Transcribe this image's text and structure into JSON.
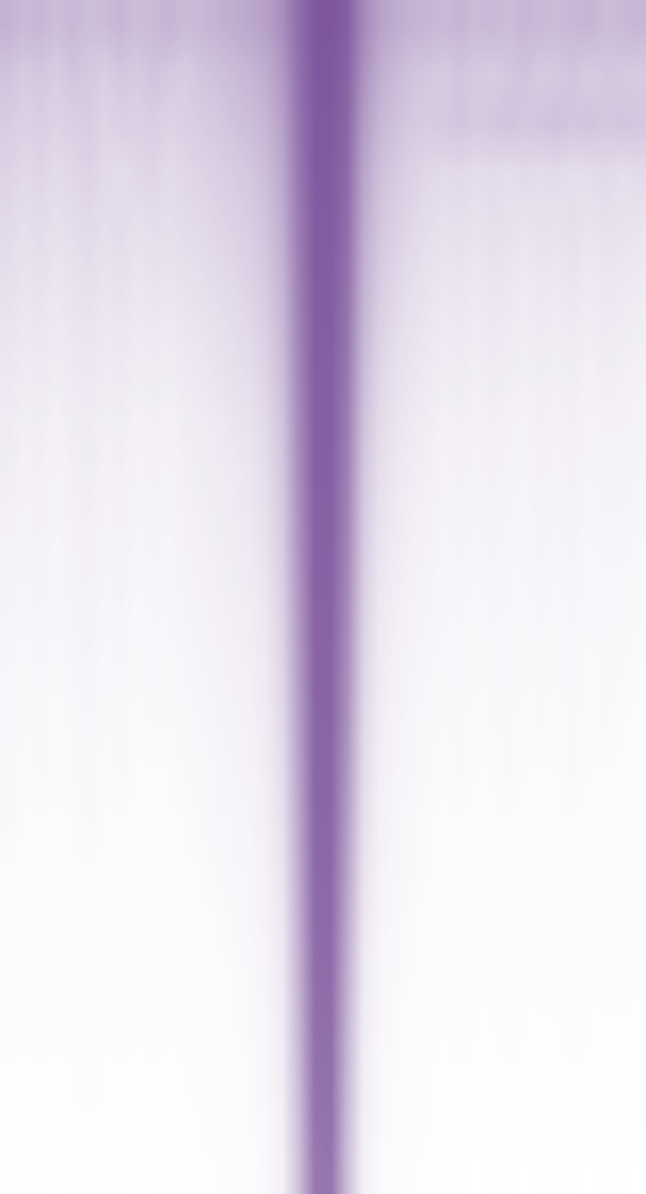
{
  "chart_data": {
    "type": "heatmap",
    "color": "#744a96",
    "value_range": [
      0,
      1
    ],
    "tick_labels": false,
    "cells": [
      [
        0.42,
        0.38,
        0.4,
        0.36,
        0.39,
        0.35,
        0.37,
        0.4,
        0.36,
        0.38,
        0.41,
        0.37,
        0.39,
        0.42,
        0.45,
        0.48,
        0.52,
        0.62,
        0.8,
        0.92,
        0.93,
        0.88,
        0.66,
        0.52,
        0.46,
        0.42,
        0.4,
        0.38,
        0.41,
        0.37,
        0.39,
        0.36,
        0.4,
        0.38,
        0.37,
        0.39,
        0.41,
        0.36,
        0.38,
        0.4
      ],
      [
        0.33,
        0.29,
        0.31,
        0.28,
        0.32,
        0.3,
        0.27,
        0.31,
        0.29,
        0.33,
        0.3,
        0.28,
        0.32,
        0.34,
        0.37,
        0.4,
        0.45,
        0.56,
        0.78,
        0.91,
        0.92,
        0.86,
        0.6,
        0.45,
        0.38,
        0.33,
        0.31,
        0.29,
        0.32,
        0.3,
        0.28,
        0.31,
        0.33,
        0.29,
        0.3,
        0.32,
        0.28,
        0.31,
        0.3,
        0.29
      ],
      [
        0.28,
        0.25,
        0.27,
        0.24,
        0.26,
        0.28,
        0.23,
        0.26,
        0.25,
        0.27,
        0.24,
        0.26,
        0.28,
        0.3,
        0.33,
        0.36,
        0.4,
        0.52,
        0.76,
        0.9,
        0.91,
        0.84,
        0.55,
        0.4,
        0.34,
        0.3,
        0.28,
        0.3,
        0.32,
        0.29,
        0.31,
        0.33,
        0.3,
        0.32,
        0.34,
        0.31,
        0.33,
        0.3,
        0.32,
        0.31
      ],
      [
        0.24,
        0.21,
        0.23,
        0.2,
        0.22,
        0.24,
        0.21,
        0.19,
        0.22,
        0.23,
        0.2,
        0.22,
        0.24,
        0.26,
        0.28,
        0.31,
        0.36,
        0.48,
        0.74,
        0.9,
        0.9,
        0.82,
        0.5,
        0.35,
        0.29,
        0.25,
        0.22,
        0.2,
        0.21,
        0.19,
        0.2,
        0.18,
        0.21,
        0.19,
        0.2,
        0.18,
        0.19,
        0.21,
        0.18,
        0.2
      ],
      [
        0.21,
        0.18,
        0.2,
        0.17,
        0.19,
        0.21,
        0.18,
        0.2,
        0.17,
        0.19,
        0.18,
        0.2,
        0.21,
        0.23,
        0.25,
        0.28,
        0.33,
        0.45,
        0.72,
        0.89,
        0.9,
        0.8,
        0.47,
        0.32,
        0.26,
        0.22,
        0.19,
        0.17,
        0.18,
        0.16,
        0.18,
        0.17,
        0.15,
        0.17,
        0.16,
        0.18,
        0.15,
        0.17,
        0.16,
        0.15
      ],
      [
        0.18,
        0.15,
        0.17,
        0.14,
        0.16,
        0.18,
        0.15,
        0.17,
        0.14,
        0.16,
        0.15,
        0.17,
        0.18,
        0.2,
        0.22,
        0.25,
        0.3,
        0.42,
        0.7,
        0.89,
        0.89,
        0.78,
        0.44,
        0.29,
        0.23,
        0.19,
        0.16,
        0.14,
        0.15,
        0.13,
        0.15,
        0.14,
        0.12,
        0.14,
        0.13,
        0.15,
        0.12,
        0.14,
        0.13,
        0.12
      ],
      [
        0.15,
        0.13,
        0.14,
        0.12,
        0.14,
        0.15,
        0.13,
        0.14,
        0.12,
        0.13,
        0.12,
        0.14,
        0.15,
        0.17,
        0.19,
        0.22,
        0.27,
        0.39,
        0.68,
        0.88,
        0.89,
        0.76,
        0.41,
        0.26,
        0.2,
        0.16,
        0.14,
        0.12,
        0.13,
        0.11,
        0.13,
        0.12,
        0.1,
        0.12,
        0.11,
        0.12,
        0.1,
        0.12,
        0.11,
        0.1
      ],
      [
        0.13,
        0.11,
        0.12,
        0.1,
        0.12,
        0.13,
        0.11,
        0.12,
        0.1,
        0.11,
        0.1,
        0.12,
        0.13,
        0.15,
        0.17,
        0.19,
        0.24,
        0.36,
        0.66,
        0.88,
        0.88,
        0.74,
        0.38,
        0.23,
        0.17,
        0.14,
        0.12,
        0.1,
        0.11,
        0.09,
        0.11,
        0.1,
        0.09,
        0.1,
        0.09,
        0.1,
        0.08,
        0.1,
        0.09,
        0.08
      ],
      [
        0.11,
        0.09,
        0.1,
        0.08,
        0.1,
        0.11,
        0.09,
        0.1,
        0.08,
        0.09,
        0.08,
        0.1,
        0.11,
        0.12,
        0.14,
        0.16,
        0.21,
        0.33,
        0.64,
        0.87,
        0.88,
        0.72,
        0.35,
        0.2,
        0.15,
        0.12,
        0.1,
        0.08,
        0.09,
        0.08,
        0.09,
        0.08,
        0.07,
        0.09,
        0.08,
        0.09,
        0.07,
        0.08,
        0.08,
        0.07
      ],
      [
        0.1,
        0.08,
        0.09,
        0.07,
        0.09,
        0.1,
        0.08,
        0.09,
        0.07,
        0.08,
        0.07,
        0.09,
        0.1,
        0.11,
        0.12,
        0.14,
        0.19,
        0.31,
        0.62,
        0.87,
        0.87,
        0.7,
        0.32,
        0.18,
        0.13,
        0.1,
        0.09,
        0.07,
        0.08,
        0.07,
        0.08,
        0.07,
        0.06,
        0.08,
        0.07,
        0.08,
        0.06,
        0.07,
        0.07,
        0.06
      ],
      [
        0.08,
        0.07,
        0.08,
        0.06,
        0.08,
        0.09,
        0.07,
        0.08,
        0.06,
        0.07,
        0.06,
        0.08,
        0.09,
        0.1,
        0.11,
        0.13,
        0.17,
        0.29,
        0.6,
        0.86,
        0.87,
        0.68,
        0.3,
        0.16,
        0.12,
        0.09,
        0.08,
        0.06,
        0.07,
        0.06,
        0.07,
        0.06,
        0.05,
        0.07,
        0.06,
        0.07,
        0.05,
        0.06,
        0.06,
        0.05
      ],
      [
        0.07,
        0.06,
        0.07,
        0.05,
        0.07,
        0.08,
        0.06,
        0.07,
        0.05,
        0.06,
        0.05,
        0.07,
        0.08,
        0.09,
        0.1,
        0.11,
        0.15,
        0.27,
        0.58,
        0.86,
        0.86,
        0.66,
        0.28,
        0.14,
        0.1,
        0.08,
        0.07,
        0.05,
        0.06,
        0.05,
        0.06,
        0.05,
        0.05,
        0.06,
        0.05,
        0.06,
        0.04,
        0.05,
        0.05,
        0.04
      ],
      [
        0.06,
        0.05,
        0.06,
        0.05,
        0.06,
        0.07,
        0.05,
        0.06,
        0.04,
        0.05,
        0.05,
        0.06,
        0.07,
        0.08,
        0.09,
        0.1,
        0.13,
        0.25,
        0.56,
        0.85,
        0.86,
        0.64,
        0.26,
        0.12,
        0.09,
        0.07,
        0.06,
        0.05,
        0.05,
        0.04,
        0.05,
        0.05,
        0.04,
        0.05,
        0.04,
        0.05,
        0.04,
        0.05,
        0.04,
        0.04
      ],
      [
        0.05,
        0.04,
        0.05,
        0.04,
        0.05,
        0.06,
        0.04,
        0.05,
        0.04,
        0.05,
        0.04,
        0.05,
        0.06,
        0.07,
        0.08,
        0.09,
        0.12,
        0.23,
        0.54,
        0.85,
        0.85,
        0.62,
        0.24,
        0.11,
        0.08,
        0.06,
        0.05,
        0.04,
        0.05,
        0.04,
        0.04,
        0.05,
        0.04,
        0.04,
        0.04,
        0.05,
        0.03,
        0.04,
        0.04,
        0.03
      ],
      [
        0.05,
        0.04,
        0.04,
        0.03,
        0.04,
        0.05,
        0.04,
        0.04,
        0.03,
        0.04,
        0.04,
        0.04,
        0.05,
        0.06,
        0.07,
        0.08,
        0.11,
        0.21,
        0.52,
        0.84,
        0.85,
        0.6,
        0.22,
        0.1,
        0.07,
        0.05,
        0.04,
        0.04,
        0.04,
        0.03,
        0.04,
        0.04,
        0.03,
        0.04,
        0.03,
        0.04,
        0.03,
        0.04,
        0.03,
        0.03
      ],
      [
        0.04,
        0.03,
        0.04,
        0.03,
        0.04,
        0.04,
        0.03,
        0.04,
        0.03,
        0.03,
        0.03,
        0.04,
        0.04,
        0.05,
        0.06,
        0.07,
        0.1,
        0.19,
        0.5,
        0.84,
        0.84,
        0.57,
        0.2,
        0.09,
        0.06,
        0.05,
        0.04,
        0.03,
        0.04,
        0.03,
        0.03,
        0.04,
        0.03,
        0.03,
        0.03,
        0.04,
        0.03,
        0.03,
        0.03,
        0.03
      ],
      [
        0.04,
        0.03,
        0.03,
        0.03,
        0.03,
        0.04,
        0.03,
        0.03,
        0.02,
        0.03,
        0.03,
        0.03,
        0.04,
        0.05,
        0.05,
        0.06,
        0.09,
        0.17,
        0.48,
        0.83,
        0.84,
        0.54,
        0.18,
        0.08,
        0.05,
        0.04,
        0.03,
        0.03,
        0.03,
        0.02,
        0.03,
        0.03,
        0.02,
        0.03,
        0.03,
        0.03,
        0.02,
        0.03,
        0.03,
        0.02
      ],
      [
        0.03,
        0.02,
        0.03,
        0.02,
        0.03,
        0.03,
        0.02,
        0.03,
        0.02,
        0.03,
        0.02,
        0.03,
        0.03,
        0.04,
        0.05,
        0.05,
        0.08,
        0.15,
        0.46,
        0.82,
        0.83,
        0.51,
        0.16,
        0.07,
        0.05,
        0.04,
        0.03,
        0.02,
        0.03,
        0.02,
        0.02,
        0.03,
        0.02,
        0.02,
        0.02,
        0.03,
        0.02,
        0.02,
        0.02,
        0.02
      ],
      [
        0.03,
        0.02,
        0.02,
        0.02,
        0.02,
        0.03,
        0.02,
        0.02,
        0.02,
        0.02,
        0.02,
        0.02,
        0.03,
        0.03,
        0.04,
        0.05,
        0.07,
        0.13,
        0.44,
        0.81,
        0.82,
        0.48,
        0.14,
        0.06,
        0.04,
        0.03,
        0.02,
        0.02,
        0.02,
        0.02,
        0.02,
        0.02,
        0.02,
        0.02,
        0.02,
        0.02,
        0.02,
        0.02,
        0.02,
        0.02
      ],
      [
        0.02,
        0.02,
        0.02,
        0.01,
        0.02,
        0.02,
        0.02,
        0.02,
        0.01,
        0.02,
        0.02,
        0.02,
        0.02,
        0.03,
        0.03,
        0.04,
        0.06,
        0.12,
        0.42,
        0.8,
        0.81,
        0.45,
        0.12,
        0.05,
        0.04,
        0.03,
        0.02,
        0.02,
        0.02,
        0.01,
        0.02,
        0.02,
        0.01,
        0.02,
        0.02,
        0.02,
        0.01,
        0.02,
        0.02,
        0.01
      ],
      [
        0.02,
        0.01,
        0.02,
        0.01,
        0.02,
        0.02,
        0.01,
        0.02,
        0.01,
        0.02,
        0.01,
        0.02,
        0.02,
        0.02,
        0.03,
        0.04,
        0.05,
        0.11,
        0.4,
        0.79,
        0.8,
        0.42,
        0.11,
        0.05,
        0.03,
        0.02,
        0.02,
        0.01,
        0.02,
        0.01,
        0.01,
        0.02,
        0.01,
        0.01,
        0.01,
        0.02,
        0.01,
        0.01,
        0.01,
        0.01
      ],
      [
        0.01,
        0.01,
        0.01,
        0.01,
        0.01,
        0.02,
        0.01,
        0.01,
        0.01,
        0.01,
        0.01,
        0.01,
        0.02,
        0.02,
        0.02,
        0.03,
        0.05,
        0.1,
        0.38,
        0.78,
        0.79,
        0.4,
        0.1,
        0.04,
        0.03,
        0.02,
        0.01,
        0.01,
        0.01,
        0.01,
        0.01,
        0.01,
        0.01,
        0.01,
        0.01,
        0.01,
        0.01,
        0.01,
        0.01,
        0.01
      ],
      [
        0.01,
        0.01,
        0.01,
        0.01,
        0.01,
        0.01,
        0.01,
        0.01,
        0.01,
        0.01,
        0.01,
        0.01,
        0.01,
        0.02,
        0.02,
        0.03,
        0.04,
        0.09,
        0.36,
        0.76,
        0.78,
        0.38,
        0.09,
        0.04,
        0.02,
        0.02,
        0.01,
        0.01,
        0.01,
        0.01,
        0.01,
        0.01,
        0.01,
        0.01,
        0.01,
        0.01,
        0.01,
        0.01,
        0.01,
        0.01
      ],
      [
        0.01,
        0.01,
        0.01,
        0.0,
        0.01,
        0.01,
        0.01,
        0.01,
        0.0,
        0.01,
        0.01,
        0.01,
        0.01,
        0.01,
        0.02,
        0.02,
        0.04,
        0.08,
        0.34,
        0.74,
        0.76,
        0.36,
        0.08,
        0.03,
        0.02,
        0.01,
        0.01,
        0.01,
        0.01,
        0.0,
        0.01,
        0.01,
        0.0,
        0.01,
        0.01,
        0.01,
        0.0,
        0.01,
        0.01,
        0.0
      ]
    ]
  }
}
